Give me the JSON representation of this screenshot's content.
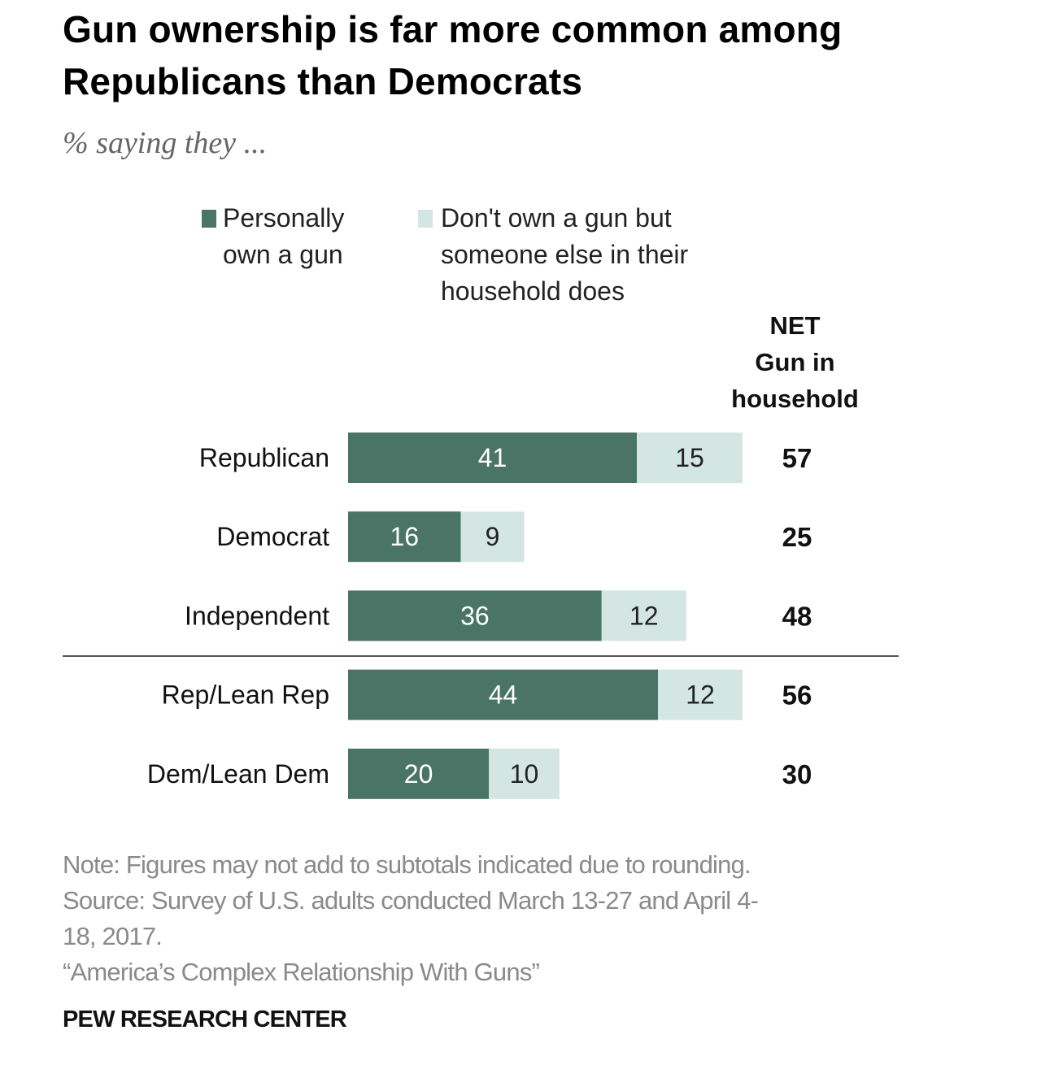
{
  "colors": {
    "personal": "#4a7566",
    "household": "#d3e6e1",
    "personal_label": "#ffffff",
    "household_label": "#222222",
    "divider": "#555555"
  },
  "chart_data": {
    "type": "bar",
    "orientation": "horizontal",
    "stacked": true,
    "title": "Gun ownership is far more common among Republicans than Democrats",
    "subtitle": "% saying they ...",
    "categories": [
      "Republican",
      "Democrat",
      "Independent",
      "Rep/Lean Rep",
      "Dem/Lean Dem"
    ],
    "series": [
      {
        "name": "Personally own a gun",
        "values": [
          41,
          16,
          36,
          44,
          20
        ]
      },
      {
        "name": "Don't own a gun but someone else in their household does",
        "values": [
          15,
          9,
          12,
          12,
          10
        ]
      }
    ],
    "net": {
      "header": [
        "NET",
        "Gun in",
        "household"
      ],
      "values": [
        57,
        25,
        48,
        56,
        30
      ]
    },
    "divider_after_index": 2,
    "xlim": [
      0,
      60
    ],
    "grid": false,
    "legend": {
      "position": "top",
      "items": [
        {
          "lines": [
            "Personally",
            "own a gun"
          ]
        },
        {
          "lines": [
            "Don't own a gun but",
            "someone else in their",
            "household does"
          ]
        }
      ]
    }
  },
  "footer": {
    "note_lines": [
      "Note: Figures may not add to subtotals indicated due to rounding.",
      "Source: Survey of U.S. adults conducted March 13-27 and April 4-",
      "18, 2017.",
      "“America’s Complex Relationship With Guns”"
    ],
    "brand": "PEW RESEARCH CENTER"
  }
}
